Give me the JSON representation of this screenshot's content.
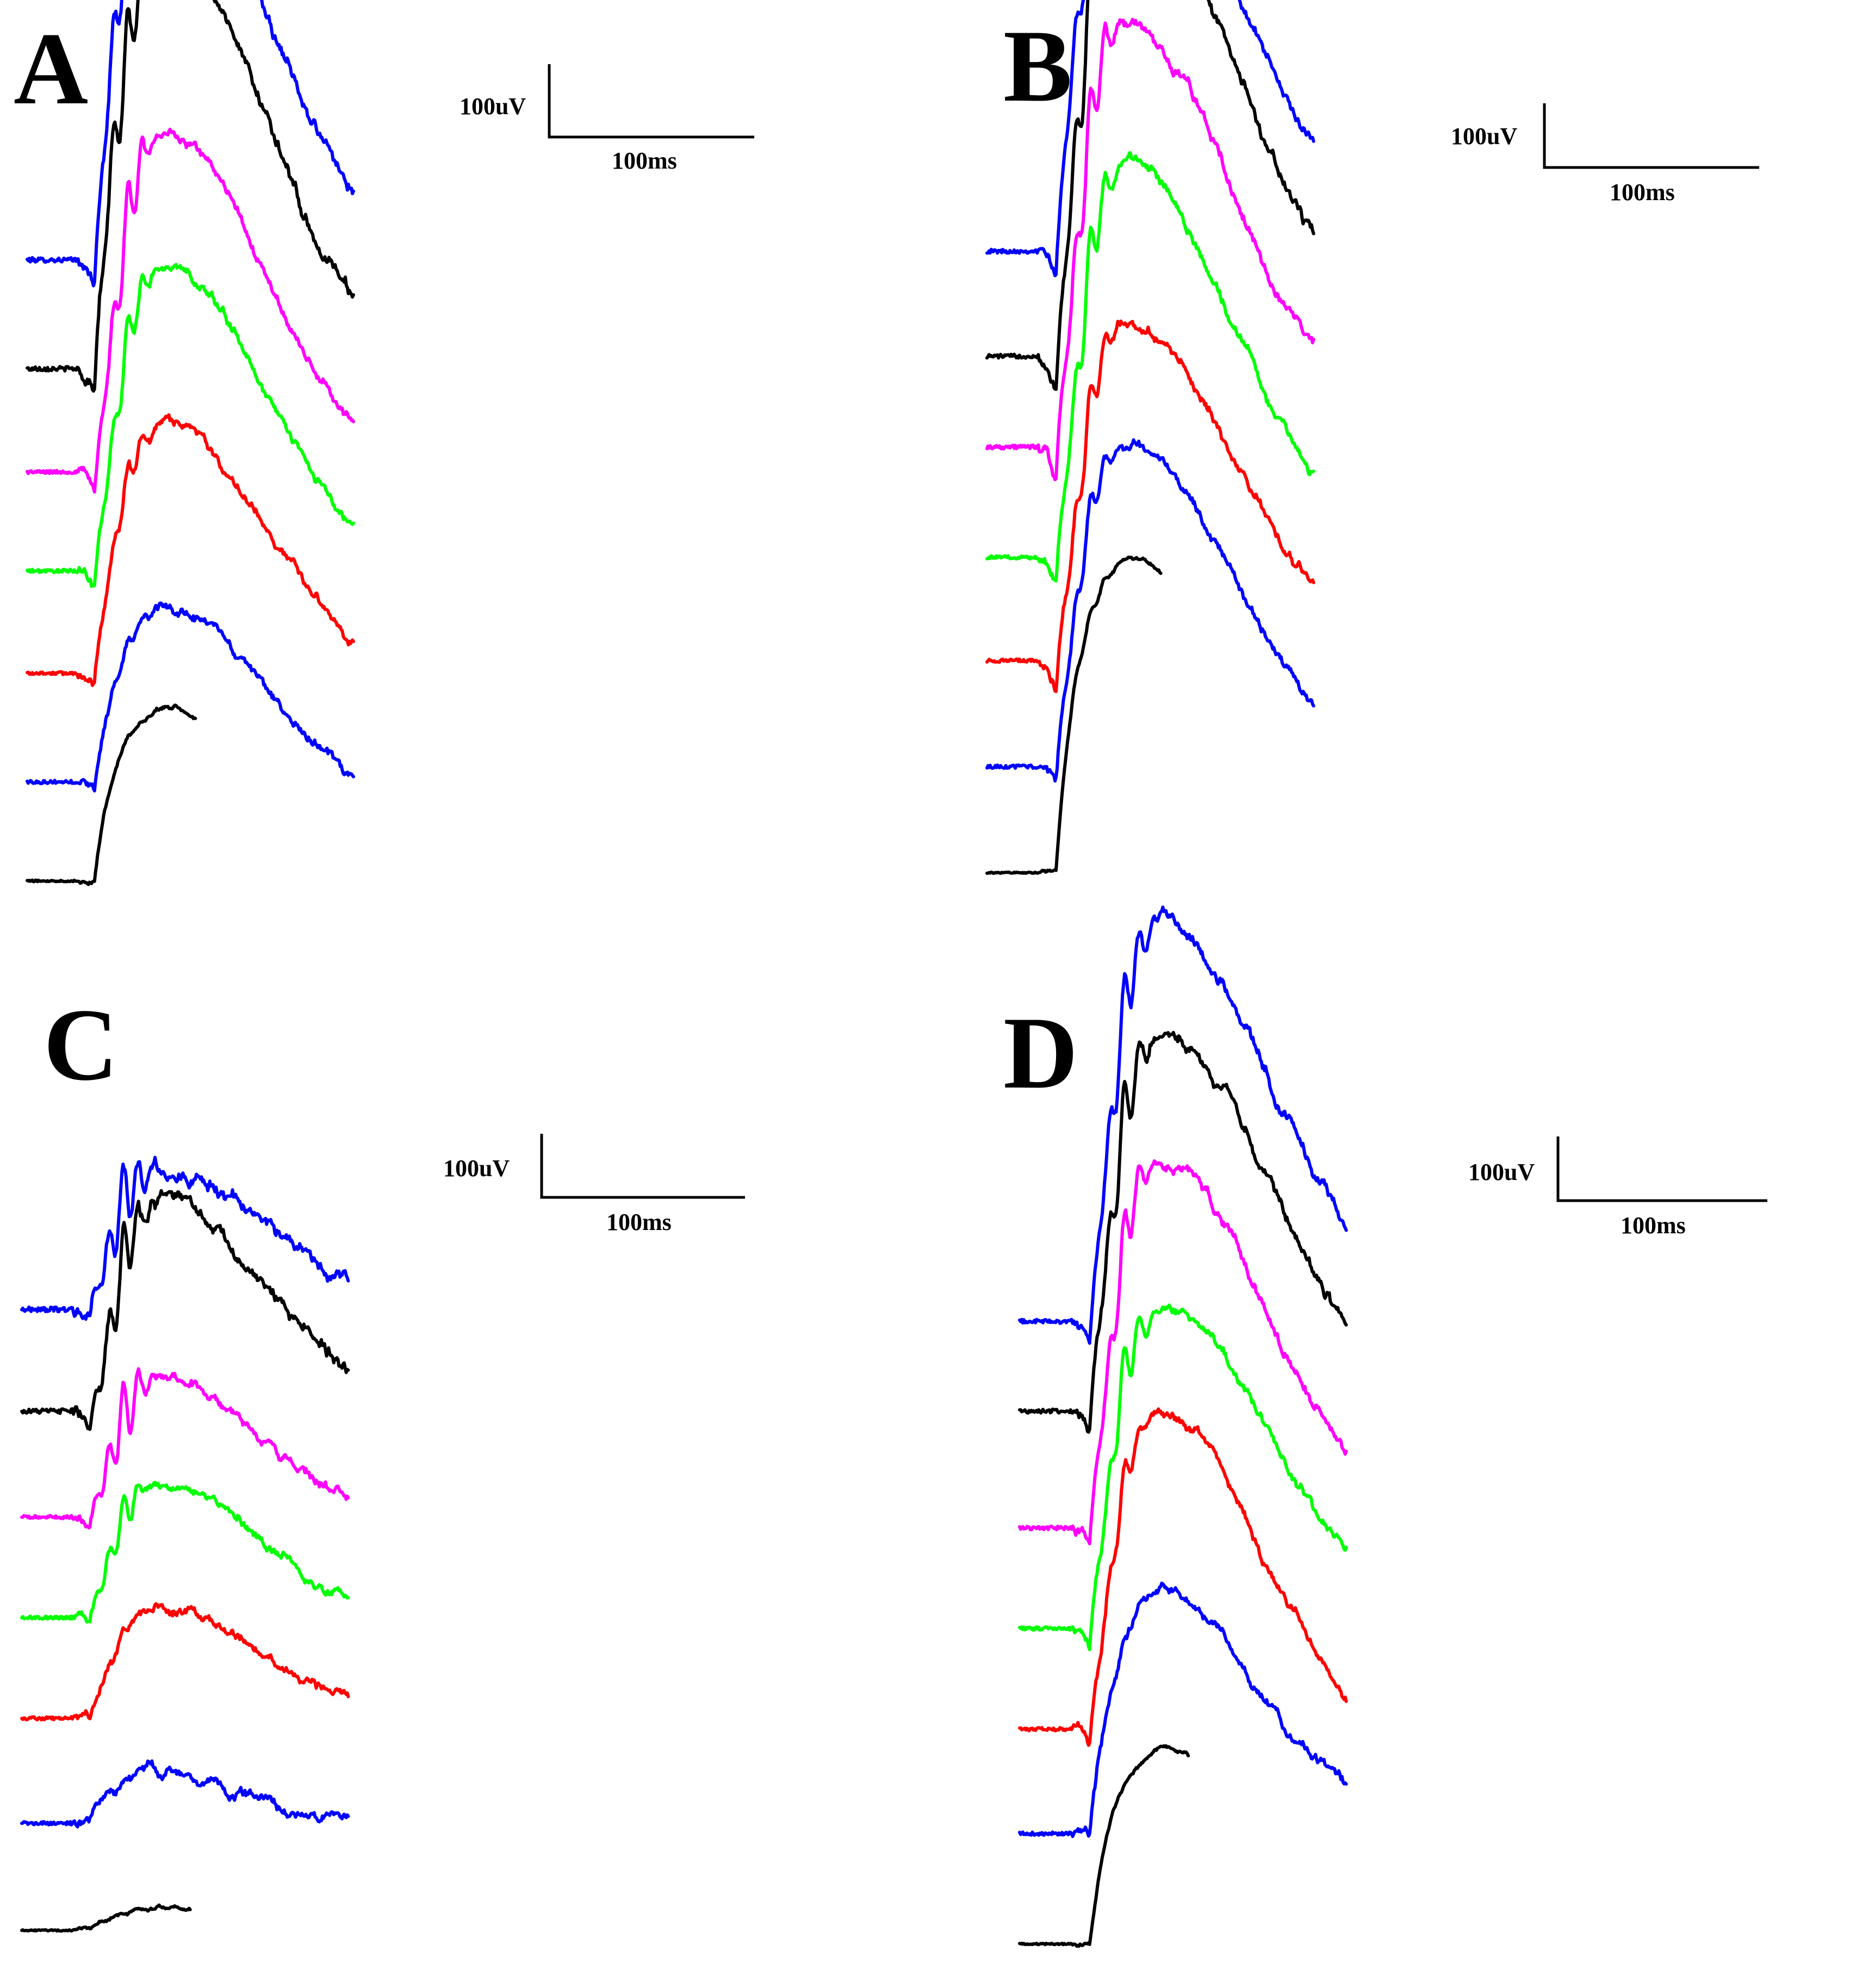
{
  "chart_data": [
    {
      "type": "line",
      "panel": "A",
      "title": "A",
      "scale_bar": {
        "amplitude_label": "100uV",
        "time_label": "100ms"
      },
      "series": [
        {
          "name": "trace-1",
          "color": "#0000ff",
          "amplitude": 400,
          "awave": 45,
          "ops": 1.0,
          "duration": 600,
          "noise": 1.4,
          "flash": 0,
          "tail": 6
        },
        {
          "name": "trace-2",
          "color": "#000000",
          "amplitude": 395,
          "awave": 45,
          "ops": 1.0,
          "duration": 600,
          "noise": 1.4,
          "flash": 0,
          "tail": 12
        },
        {
          "name": "trace-3",
          "color": "#ff00ff",
          "amplitude": 310,
          "awave": 55,
          "ops": 0.8,
          "duration": 600,
          "noise": 1.0,
          "flash": 0,
          "tail": 5
        },
        {
          "name": "trace-4",
          "color": "#00ff00",
          "amplitude": 285,
          "awave": 50,
          "ops": 0.6,
          "duration": 600,
          "noise": 1.0,
          "flash": 0,
          "tail": 0
        },
        {
          "name": "trace-5",
          "color": "#ff0000",
          "amplitude": 230,
          "awave": 25,
          "ops": 0.35,
          "duration": 600,
          "noise": 1.0,
          "flash": 0,
          "tail": 0
        },
        {
          "name": "trace-6",
          "color": "#0000ff",
          "amplitude": 160,
          "awave": 10,
          "ops": 0.15,
          "duration": 600,
          "noise": 1.0,
          "flash": 0,
          "tail": -15
        },
        {
          "name": "trace-7",
          "color": "#000000",
          "amplitude": 160,
          "awave": 0,
          "ops": 0.0,
          "duration": 310,
          "noise": 0.5,
          "flash": 0,
          "tail": 0
        }
      ]
    },
    {
      "type": "line",
      "panel": "B",
      "title": "B",
      "scale_bar": {
        "amplitude_label": "100uV",
        "time_label": "100ms"
      },
      "series": [
        {
          "name": "trace-1",
          "color": "#0000ff",
          "amplitude": 410,
          "awave": 50,
          "ops": 0.9,
          "duration": 600,
          "noise": 1.2,
          "flash": 1,
          "tail": 30
        },
        {
          "name": "trace-2",
          "color": "#000000",
          "amplitude": 430,
          "awave": 65,
          "ops": 1.0,
          "duration": 600,
          "noise": 1.2,
          "flash": 1,
          "tail": 45
        },
        {
          "name": "trace-3",
          "color": "#ff00ff",
          "amplitude": 390,
          "awave": 70,
          "ops": 0.9,
          "duration": 600,
          "noise": 1.2,
          "flash": 0,
          "tail": 25
        },
        {
          "name": "trace-4",
          "color": "#00ff00",
          "amplitude": 360,
          "awave": 65,
          "ops": 0.8,
          "duration": 600,
          "noise": 1.0,
          "flash": 0,
          "tail": 20
        },
        {
          "name": "trace-5",
          "color": "#ff0000",
          "amplitude": 310,
          "awave": 55,
          "ops": 0.6,
          "duration": 600,
          "noise": 1.0,
          "flash": 0,
          "tail": 20
        },
        {
          "name": "trace-6",
          "color": "#0000ff",
          "amplitude": 300,
          "awave": 40,
          "ops": 0.45,
          "duration": 600,
          "noise": 1.0,
          "flash": 0,
          "tail": 10
        },
        {
          "name": "trace-7",
          "color": "#000000",
          "amplitude": 290,
          "awave": 0,
          "ops": 0.15,
          "duration": 320,
          "noise": 0.4,
          "flash": 0,
          "tail": -20
        }
      ]
    },
    {
      "type": "line",
      "panel": "C",
      "title": "C",
      "scale_bar": {
        "amplitude_label": "100uV",
        "time_label": "100ms"
      },
      "series": [
        {
          "name": "trace-1",
          "color": "#0000ff",
          "amplitude": 130,
          "awave": 25,
          "ops": 0.8,
          "duration": 600,
          "noise": 1.4,
          "flash": 0,
          "tail": 8
        },
        {
          "name": "trace-2",
          "color": "#000000",
          "amplitude": 190,
          "awave": 35,
          "ops": 0.8,
          "duration": 600,
          "noise": 1.4,
          "flash": 0,
          "tail": 8
        },
        {
          "name": "trace-3",
          "color": "#ff00ff",
          "amplitude": 130,
          "awave": 25,
          "ops": 0.75,
          "duration": 600,
          "noise": 1.0,
          "flash": 0,
          "tail": 0
        },
        {
          "name": "trace-4",
          "color": "#00ff00",
          "amplitude": 125,
          "awave": 25,
          "ops": 0.45,
          "duration": 600,
          "noise": 1.0,
          "flash": 0,
          "tail": -2
        },
        {
          "name": "trace-5",
          "color": "#ff0000",
          "amplitude": 100,
          "awave": 5,
          "ops": 0.1,
          "duration": 600,
          "noise": 1.0,
          "flash": 0,
          "tail": 0
        },
        {
          "name": "trace-6",
          "color": "#0000ff",
          "amplitude": 45,
          "awave": 0,
          "ops": 0.05,
          "duration": 600,
          "noise": 1.0,
          "flash": 0,
          "tail": -5
        },
        {
          "name": "trace-7",
          "color": "#000000",
          "amplitude": 20,
          "awave": 0,
          "ops": 0.0,
          "duration": 310,
          "noise": 0.4,
          "flash": 0,
          "tail": 0
        }
      ]
    },
    {
      "type": "line",
      "panel": "D",
      "title": "D",
      "scale_bar": {
        "amplitude_label": "100uV",
        "time_label": "100ms"
      },
      "series": [
        {
          "name": "trace-1",
          "color": "#0000ff",
          "amplitude": 370,
          "awave": 65,
          "ops": 0.8,
          "duration": 600,
          "noise": 1.2,
          "flash": 1,
          "tail": 25
        },
        {
          "name": "trace-2",
          "color": "#000000",
          "amplitude": 350,
          "awave": 60,
          "ops": 0.8,
          "duration": 600,
          "noise": 1.2,
          "flash": 1,
          "tail": 25
        },
        {
          "name": "trace-3",
          "color": "#ff00ff",
          "amplitude": 340,
          "awave": 55,
          "ops": 0.7,
          "duration": 600,
          "noise": 1.1,
          "flash": 0,
          "tail": 10
        },
        {
          "name": "trace-4",
          "color": "#00ff00",
          "amplitude": 300,
          "awave": 55,
          "ops": 0.6,
          "duration": 600,
          "noise": 1.0,
          "flash": 0,
          "tail": 20
        },
        {
          "name": "trace-5",
          "color": "#ff0000",
          "amplitude": 290,
          "awave": 45,
          "ops": 0.4,
          "duration": 600,
          "noise": 1.0,
          "flash": 0,
          "tail": -20
        },
        {
          "name": "trace-6",
          "color": "#0000ff",
          "amplitude": 220,
          "awave": 15,
          "ops": 0.1,
          "duration": 600,
          "noise": 1.0,
          "flash": 0,
          "tail": 0
        },
        {
          "name": "trace-7",
          "color": "#000000",
          "amplitude": 180,
          "awave": 0,
          "ops": 0.0,
          "duration": 310,
          "noise": 0.4,
          "flash": 0,
          "tail": 0
        }
      ]
    }
  ]
}
